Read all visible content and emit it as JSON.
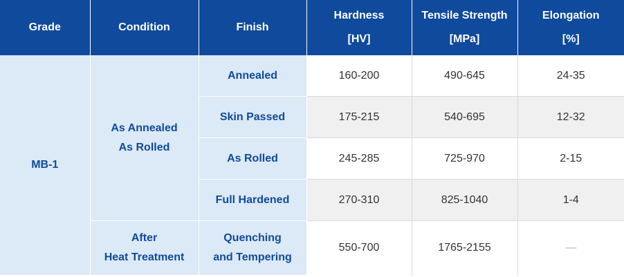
{
  "headers": {
    "grade": "Grade",
    "condition": "Condition",
    "finish": "Finish",
    "hardness": "Hardness",
    "hardness_unit": "[HV]",
    "tensile": "Tensile Strength",
    "tensile_unit": "[MPa]",
    "elongation": "Elongation",
    "elongation_unit": "[%]"
  },
  "grade": "MB-1",
  "conditions": {
    "c1_line1": "As Annealed",
    "c1_line2": "As Rolled",
    "c2_line1": "After",
    "c2_line2": "Heat Treatment"
  },
  "rows": [
    {
      "finish": "Annealed",
      "hardness": "160-200",
      "tensile": "490-645",
      "elongation": "24-35"
    },
    {
      "finish": "Skin Passed",
      "hardness": "175-215",
      "tensile": "540-695",
      "elongation": "12-32"
    },
    {
      "finish": "As Rolled",
      "hardness": "245-285",
      "tensile": "725-970",
      "elongation": "2-15"
    },
    {
      "finish": "Full Hardened",
      "hardness": "270-310",
      "tensile": "825-1040",
      "elongation": "1-4"
    },
    {
      "finish_line1": "Quenching",
      "finish_line2": "and Tempering",
      "hardness": "550-700",
      "tensile": "1765-2155",
      "elongation": "—"
    }
  ],
  "colors": {
    "header_bg": "#0f4a9c",
    "label_bg": "#dce9f6",
    "label_text": "#0f4a9c",
    "stripe_bg": "#f0f0f0"
  }
}
